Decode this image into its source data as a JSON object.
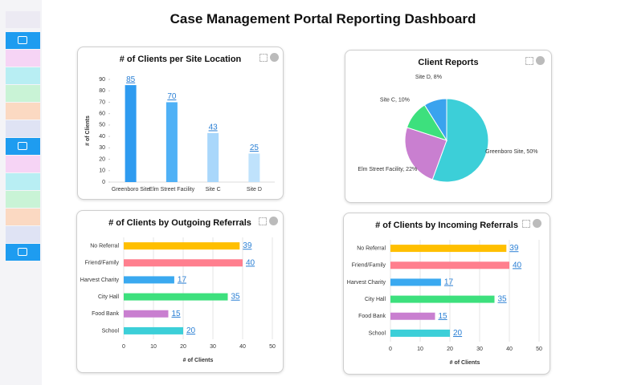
{
  "title": "Case Management Portal Reporting Dashboard",
  "chart_data": [
    {
      "type": "bar",
      "title": "# of Clients per Site Location",
      "y_label": "# of Clients",
      "categories": [
        "Greenboro Site",
        "Elm Street Facility",
        "Site C",
        "Site D"
      ],
      "values": [
        85,
        70,
        43,
        25
      ],
      "colors": [
        "#2e9bf0",
        "#4fb1f6",
        "#a9d7fb",
        "#bfe2fc"
      ],
      "ylim": [
        0,
        90
      ],
      "yticks": [
        0,
        10,
        20,
        30,
        40,
        50,
        60,
        70,
        80,
        90
      ]
    },
    {
      "type": "pie",
      "title": "Client Reports",
      "values": [
        50,
        22,
        10,
        8
      ],
      "value_labels": [
        "Greenboro Site, 50%",
        "Elm Street Facility, 22%",
        "Site C, 10%",
        "Site D, 8%"
      ],
      "colors": [
        "#3ccfd8",
        "#c97fd0",
        "#3de07d",
        "#3aa3ee"
      ]
    },
    {
      "type": "hbar",
      "title": "# of Clients by Outgoing Referrals",
      "x_label": "# of Clients",
      "categories": [
        "No Referral",
        "Friend/Family",
        "Harvest Charity",
        "City Hall",
        "Food Bank",
        "School"
      ],
      "values": [
        39,
        40,
        17,
        35,
        15,
        20
      ],
      "colors": [
        "#ffbf00",
        "#ff7f8e",
        "#3aa9f0",
        "#3de07d",
        "#c97fd0",
        "#3ccfd8"
      ],
      "xlim": [
        0,
        50
      ],
      "xticks": [
        0,
        10,
        20,
        30,
        40,
        50
      ]
    },
    {
      "type": "hbar",
      "title": "# of Clients by Incoming Referrals",
      "x_label": "# of Clients",
      "categories": [
        "No Referral",
        "Friend/Family",
        "Harvest Charity",
        "City Hall",
        "Food Bank",
        "School"
      ],
      "values": [
        39,
        40,
        17,
        35,
        15,
        20
      ],
      "colors": [
        "#ffbf00",
        "#ff7f8e",
        "#3aa9f0",
        "#3de07d",
        "#c97fd0",
        "#3ccfd8"
      ],
      "xlim": [
        0,
        50
      ],
      "xticks": [
        0,
        10,
        20,
        30,
        40,
        50
      ]
    }
  ]
}
